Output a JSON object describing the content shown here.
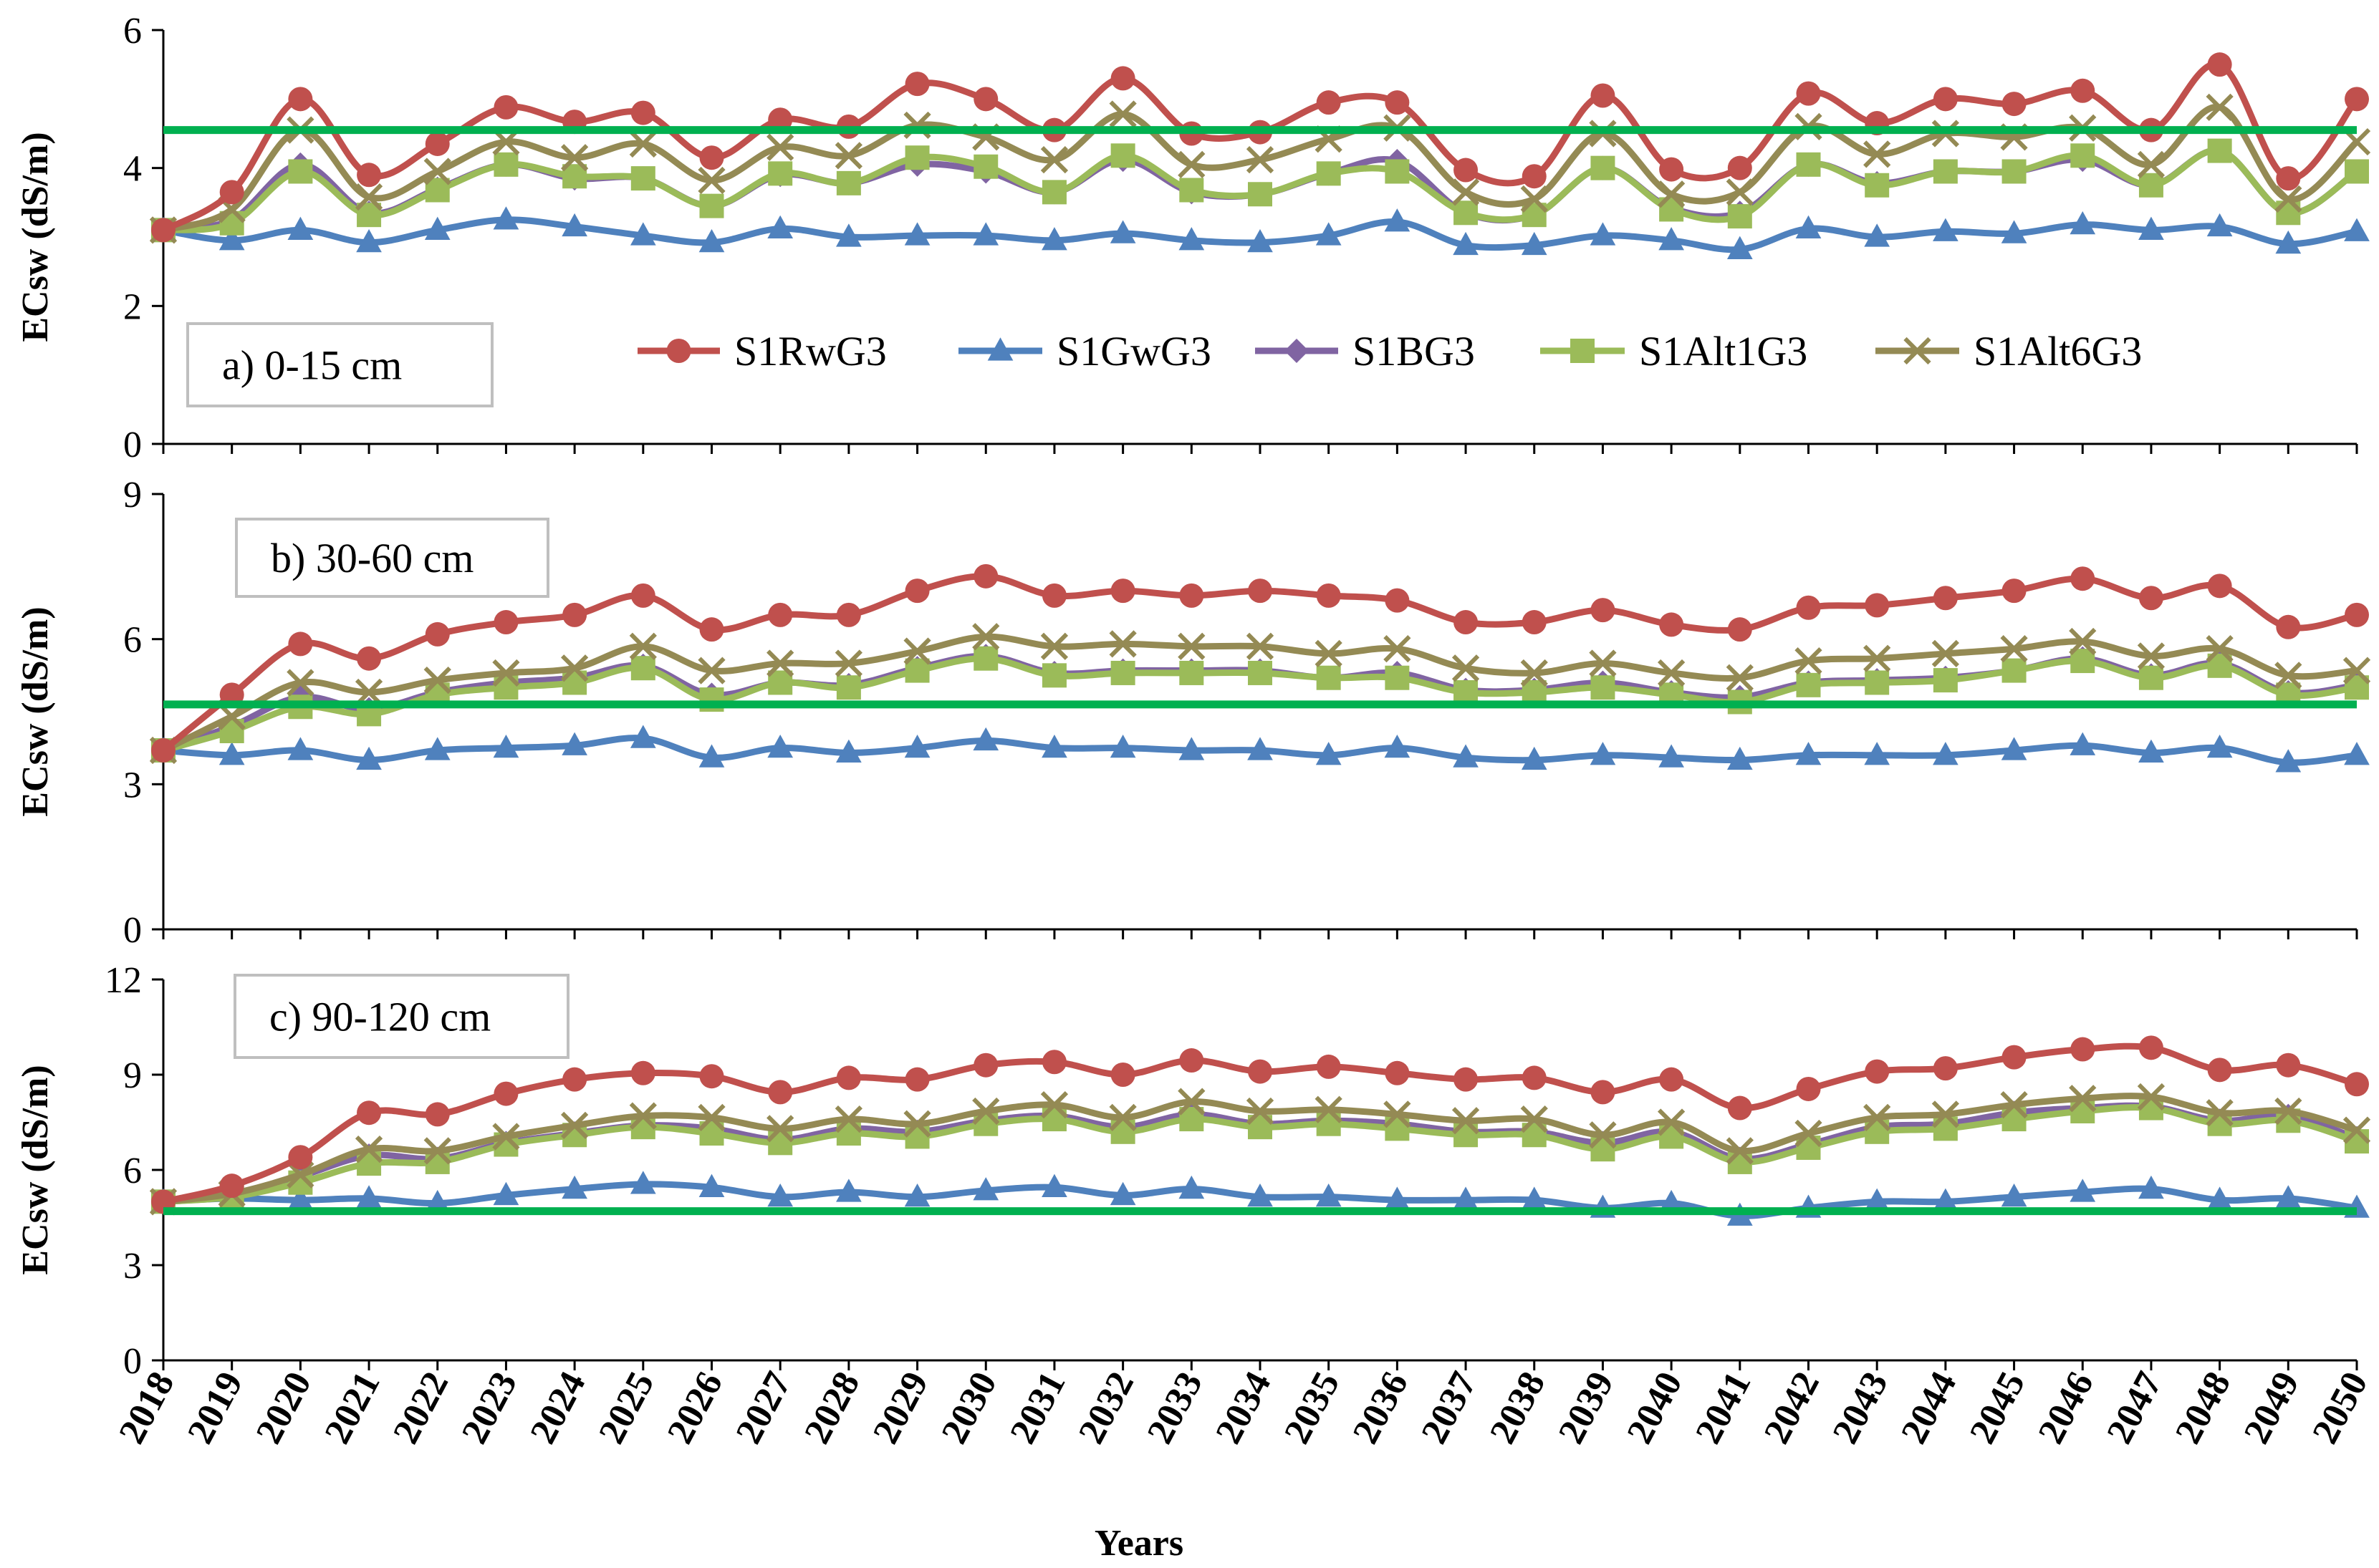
{
  "chart_data": {
    "type": "line",
    "xlabel": "Years",
    "ylabel": "ECsw (dS/m)",
    "years": [
      2018,
      2019,
      2020,
      2021,
      2022,
      2023,
      2024,
      2025,
      2026,
      2027,
      2028,
      2029,
      2030,
      2031,
      2032,
      2033,
      2034,
      2035,
      2036,
      2037,
      2038,
      2039,
      2040,
      2041,
      2042,
      2043,
      2044,
      2045,
      2046,
      2047,
      2048,
      2049,
      2050
    ],
    "legend": [
      "S1RwG3",
      "S1GwG3",
      "S1BG3",
      "S1Alt1G3",
      "S1Alt6G3"
    ],
    "colors": {
      "S1RwG3": "#c0504d",
      "S1GwG3": "#4f81bd",
      "S1BG3": "#8064a2",
      "S1Alt1G3": "#9bbb59",
      "S1Alt6G3": "#948a54",
      "threshold": "#00b050"
    },
    "markers": {
      "S1RwG3": "circle",
      "S1GwG3": "triangle",
      "S1BG3": "diamond",
      "S1Alt1G3": "square",
      "S1Alt6G3": "x"
    },
    "panels": [
      {
        "label": "a) 0-15 cm",
        "ylim": [
          0,
          6
        ],
        "yticks": [
          0,
          2,
          4,
          6
        ],
        "threshold": 4.55,
        "series": [
          {
            "name": "S1RwG3",
            "values": [
              3.1,
              3.65,
              5.0,
              3.9,
              4.35,
              4.88,
              4.67,
              4.8,
              4.15,
              4.7,
              4.6,
              5.22,
              5.0,
              4.55,
              5.3,
              4.5,
              4.52,
              4.95,
              4.95,
              3.97,
              3.88,
              5.05,
              3.98,
              4.0,
              5.08,
              4.65,
              5.0,
              4.93,
              5.12,
              4.55,
              5.5,
              3.85,
              5.0
            ]
          },
          {
            "name": "S1GwG3",
            "values": [
              3.1,
              2.95,
              3.1,
              2.92,
              3.1,
              3.25,
              3.15,
              3.02,
              2.92,
              3.12,
              3.0,
              3.02,
              3.02,
              2.95,
              3.05,
              2.95,
              2.92,
              3.02,
              3.22,
              2.88,
              2.88,
              3.02,
              2.95,
              2.82,
              3.12,
              3.0,
              3.08,
              3.05,
              3.18,
              3.1,
              3.15,
              2.9,
              3.08
            ]
          },
          {
            "name": "S1BG3",
            "values": [
              3.1,
              3.25,
              4.05,
              3.35,
              3.7,
              4.05,
              3.85,
              3.85,
              3.45,
              3.9,
              3.78,
              4.05,
              3.95,
              3.65,
              4.12,
              3.65,
              3.62,
              3.92,
              4.1,
              3.35,
              3.32,
              4.0,
              3.42,
              3.35,
              4.05,
              3.78,
              3.95,
              3.95,
              4.12,
              3.75,
              4.25,
              3.35,
              3.95
            ]
          },
          {
            "name": "S1Alt1G3",
            "values": [
              3.1,
              3.2,
              3.95,
              3.32,
              3.68,
              4.05,
              3.88,
              3.85,
              3.45,
              3.92,
              3.78,
              4.15,
              4.02,
              3.65,
              4.18,
              3.68,
              3.62,
              3.92,
              3.95,
              3.35,
              3.32,
              4.0,
              3.4,
              3.3,
              4.05,
              3.75,
              3.95,
              3.95,
              4.18,
              3.75,
              4.25,
              3.35,
              3.95
            ]
          },
          {
            "name": "S1Alt6G3",
            "values": [
              3.1,
              3.4,
              4.55,
              3.58,
              3.95,
              4.38,
              4.15,
              4.35,
              3.82,
              4.3,
              4.18,
              4.62,
              4.45,
              4.12,
              4.78,
              4.05,
              4.12,
              4.42,
              4.58,
              3.65,
              3.55,
              4.5,
              3.62,
              3.65,
              4.6,
              4.2,
              4.5,
              4.45,
              4.58,
              4.05,
              4.88,
              3.55,
              4.38
            ]
          }
        ]
      },
      {
        "label": "b) 30-60 cm",
        "ylim": [
          0,
          9
        ],
        "yticks": [
          0,
          3,
          6,
          9
        ],
        "threshold": 4.65,
        "series": [
          {
            "name": "S1RwG3",
            "values": [
              3.7,
              4.85,
              5.9,
              5.6,
              6.1,
              6.35,
              6.5,
              6.9,
              6.2,
              6.5,
              6.5,
              7.0,
              7.3,
              6.9,
              7.0,
              6.9,
              7.0,
              6.9,
              6.8,
              6.35,
              6.35,
              6.6,
              6.3,
              6.2,
              6.65,
              6.7,
              6.85,
              7.0,
              7.25,
              6.85,
              7.1,
              6.25,
              6.5
            ]
          },
          {
            "name": "S1GwG3",
            "values": [
              3.7,
              3.6,
              3.7,
              3.5,
              3.7,
              3.75,
              3.8,
              3.95,
              3.55,
              3.75,
              3.65,
              3.75,
              3.9,
              3.75,
              3.75,
              3.7,
              3.7,
              3.6,
              3.75,
              3.55,
              3.5,
              3.6,
              3.55,
              3.5,
              3.6,
              3.6,
              3.6,
              3.7,
              3.8,
              3.65,
              3.75,
              3.45,
              3.6
            ]
          },
          {
            "name": "S1BG3",
            "values": [
              3.7,
              4.2,
              4.8,
              4.55,
              4.9,
              5.1,
              5.2,
              5.45,
              4.85,
              5.1,
              5.05,
              5.4,
              5.65,
              5.3,
              5.35,
              5.35,
              5.35,
              5.2,
              5.3,
              4.95,
              4.95,
              5.1,
              4.9,
              4.8,
              5.1,
              5.15,
              5.2,
              5.35,
              5.6,
              5.25,
              5.5,
              4.9,
              5.05
            ]
          },
          {
            "name": "S1Alt1G3",
            "values": [
              3.7,
              4.1,
              4.6,
              4.45,
              4.85,
              5.0,
              5.1,
              5.4,
              4.75,
              5.1,
              5.0,
              5.35,
              5.6,
              5.25,
              5.3,
              5.3,
              5.3,
              5.2,
              5.2,
              4.9,
              4.9,
              5.0,
              4.85,
              4.7,
              5.05,
              5.1,
              5.15,
              5.35,
              5.55,
              5.2,
              5.45,
              4.85,
              5.0
            ]
          },
          {
            "name": "S1Alt6G3",
            "values": [
              3.7,
              4.4,
              5.1,
              4.9,
              5.15,
              5.3,
              5.4,
              5.85,
              5.35,
              5.5,
              5.5,
              5.75,
              6.05,
              5.85,
              5.9,
              5.85,
              5.85,
              5.7,
              5.8,
              5.4,
              5.3,
              5.5,
              5.3,
              5.2,
              5.55,
              5.6,
              5.7,
              5.8,
              5.95,
              5.65,
              5.8,
              5.25,
              5.35
            ]
          }
        ]
      },
      {
        "label": "c) 90-120 cm",
        "ylim": [
          0,
          12
        ],
        "yticks": [
          0,
          3,
          6,
          9,
          12
        ],
        "threshold": 4.7,
        "series": [
          {
            "name": "S1RwG3",
            "values": [
              5.0,
              5.5,
              6.4,
              7.8,
              7.75,
              8.4,
              8.85,
              9.05,
              8.95,
              8.45,
              8.9,
              8.85,
              9.3,
              9.4,
              9.0,
              9.45,
              9.1,
              9.25,
              9.05,
              8.85,
              8.9,
              8.45,
              8.85,
              7.95,
              8.55,
              9.1,
              9.2,
              9.55,
              9.8,
              9.85,
              9.15,
              9.3,
              8.7
            ]
          },
          {
            "name": "S1GwG3",
            "values": [
              5.0,
              5.1,
              5.05,
              5.1,
              4.95,
              5.2,
              5.4,
              5.55,
              5.45,
              5.15,
              5.3,
              5.15,
              5.35,
              5.45,
              5.2,
              5.4,
              5.15,
              5.15,
              5.05,
              5.05,
              5.05,
              4.8,
              4.95,
              4.55,
              4.8,
              5.0,
              5.0,
              5.15,
              5.3,
              5.4,
              5.05,
              5.1,
              4.8
            ]
          },
          {
            "name": "S1BG3",
            "values": [
              5.0,
              5.2,
              5.8,
              6.45,
              6.35,
              6.85,
              7.15,
              7.4,
              7.3,
              6.95,
              7.3,
              7.2,
              7.55,
              7.7,
              7.35,
              7.75,
              7.45,
              7.55,
              7.45,
              7.2,
              7.2,
              6.85,
              7.2,
              6.35,
              6.8,
              7.35,
              7.45,
              7.8,
              7.95,
              8.0,
              7.55,
              7.7,
              7.0
            ]
          },
          {
            "name": "S1Alt1G3",
            "values": [
              5.0,
              5.15,
              5.6,
              6.2,
              6.25,
              6.8,
              7.1,
              7.35,
              7.15,
              6.85,
              7.15,
              7.05,
              7.45,
              7.6,
              7.2,
              7.6,
              7.35,
              7.45,
              7.3,
              7.1,
              7.1,
              6.65,
              7.05,
              6.25,
              6.7,
              7.2,
              7.3,
              7.6,
              7.85,
              7.95,
              7.45,
              7.55,
              6.9
            ]
          },
          {
            "name": "S1Alt6G3",
            "values": [
              5.0,
              5.25,
              5.85,
              6.65,
              6.6,
              7.05,
              7.4,
              7.7,
              7.65,
              7.3,
              7.6,
              7.45,
              7.85,
              8.05,
              7.65,
              8.15,
              7.85,
              7.9,
              7.75,
              7.55,
              7.6,
              7.1,
              7.5,
              6.6,
              7.15,
              7.65,
              7.75,
              8.05,
              8.25,
              8.3,
              7.8,
              7.85,
              7.25
            ]
          }
        ]
      }
    ]
  }
}
